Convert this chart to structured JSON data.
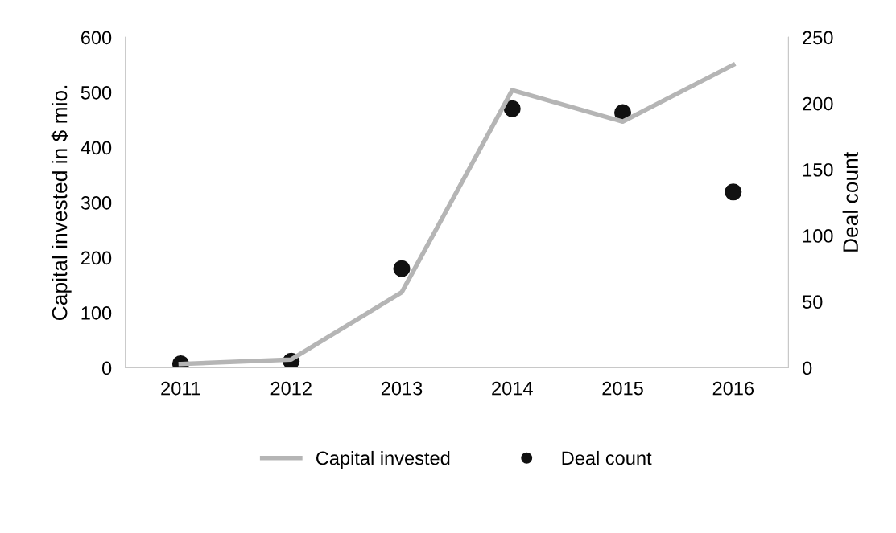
{
  "chart_data": {
    "type": "line",
    "categories": [
      "2011",
      "2012",
      "2013",
      "2014",
      "2015",
      "2016"
    ],
    "ylabel": "Capital invested in $ mio.",
    "y2label": "Deal count",
    "ylim": [
      0,
      600
    ],
    "yticks": [
      0,
      100,
      200,
      300,
      400,
      500,
      600
    ],
    "y2lim": [
      0,
      250
    ],
    "y2ticks": [
      0,
      50,
      100,
      150,
      200,
      250
    ],
    "legend": "bottom",
    "grid": false,
    "series": [
      {
        "name": "Capital invested",
        "color": "#b5b5b5",
        "values": [
          7,
          15,
          137,
          504,
          447,
          550
        ]
      },
      {
        "name": "Deal count",
        "type": "scatter",
        "axis": "y2",
        "marker": "circle",
        "color": "#111111",
        "values": [
          3,
          5,
          75,
          196,
          193,
          133
        ]
      }
    ]
  }
}
